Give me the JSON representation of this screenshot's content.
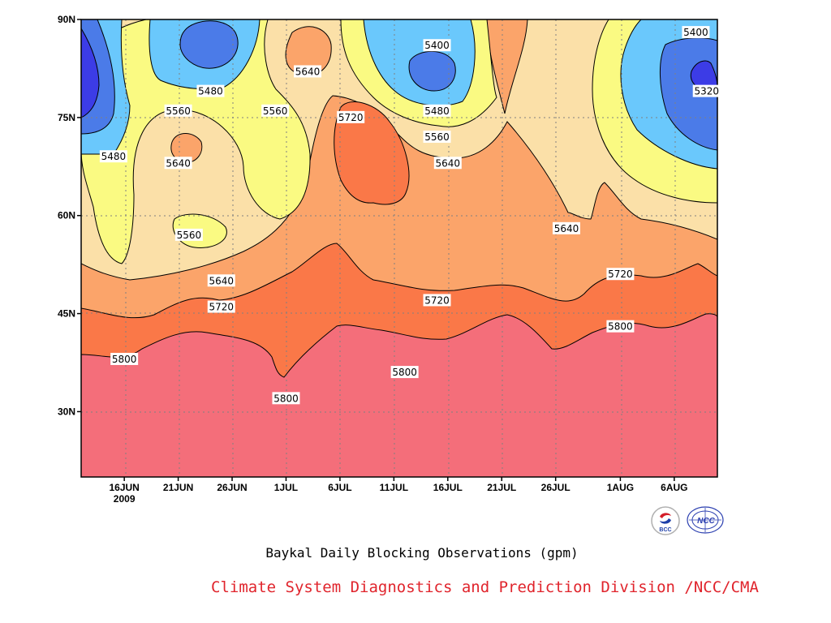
{
  "chart_data": {
    "type": "heatmap",
    "subtype": "filled-contour (time vs latitude)",
    "title": "Baykal Daily Blocking Observations (gpm)",
    "x_axis": {
      "ticks": [
        "16JUN",
        "21JUN",
        "26JUN",
        "1JUL",
        "6JUL",
        "11JUL",
        "16JUL",
        "21JUL",
        "26JUL",
        "1AUG",
        "6AUG"
      ],
      "year_label": "2009",
      "range": [
        "2009-06-12",
        "2009-08-10"
      ]
    },
    "y_axis": {
      "ticks": [
        "30N",
        "45N",
        "60N",
        "75N",
        "90N"
      ],
      "tick_values": [
        30,
        45,
        60,
        75,
        90
      ],
      "range": [
        20,
        90
      ],
      "unit": "degrees North"
    },
    "grid": true,
    "contour_levels": [
      5320,
      5400,
      5480,
      5560,
      5640,
      5720,
      5800
    ],
    "fill_colors": {
      "lt5320": "#3c3ce6",
      "5320_5400": "#4b7be8",
      "5400_5480": "#6ac8fc",
      "5480_5560": "#fafa82",
      "5560_5640": "#fbe0a8",
      "5640_5720": "#fba46a",
      "5720_5800": "#fa7848",
      "gt5800": "#f46e7a"
    },
    "contour_labels": [
      {
        "text": "5800",
        "date": "2009-06-16",
        "lat": 38
      },
      {
        "text": "5800",
        "date": "2009-07-01",
        "lat": 32
      },
      {
        "text": "5800",
        "date": "2009-07-12",
        "lat": 36
      },
      {
        "text": "5800",
        "date": "2009-08-01",
        "lat": 43
      },
      {
        "text": "5720",
        "date": "2009-06-25",
        "lat": 46
      },
      {
        "text": "5720",
        "date": "2009-07-15",
        "lat": 47
      },
      {
        "text": "5720",
        "date": "2009-08-01",
        "lat": 51
      },
      {
        "text": "5720",
        "date": "2009-07-07",
        "lat": 75
      },
      {
        "text": "5640",
        "date": "2009-06-25",
        "lat": 50
      },
      {
        "text": "5640",
        "date": "2009-06-21",
        "lat": 68
      },
      {
        "text": "5640",
        "date": "2009-07-03",
        "lat": 82
      },
      {
        "text": "5640",
        "date": "2009-07-16",
        "lat": 68
      },
      {
        "text": "5640",
        "date": "2009-07-27",
        "lat": 58
      },
      {
        "text": "5560",
        "date": "2009-06-22",
        "lat": 57
      },
      {
        "text": "5560",
        "date": "2009-06-21",
        "lat": 76
      },
      {
        "text": "5560",
        "date": "2009-06-30",
        "lat": 76
      },
      {
        "text": "5560",
        "date": "2009-07-15",
        "lat": 72
      },
      {
        "text": "5480",
        "date": "2009-06-15",
        "lat": 69
      },
      {
        "text": "5480",
        "date": "2009-06-24",
        "lat": 79
      },
      {
        "text": "5480",
        "date": "2009-07-15",
        "lat": 76
      },
      {
        "text": "5400",
        "date": "2009-07-15",
        "lat": 86
      },
      {
        "text": "5400",
        "date": "2009-08-08",
        "lat": 88
      },
      {
        "text": "5320",
        "date": "2009-08-09",
        "lat": 79
      }
    ]
  },
  "footer": {
    "credit": "Climate System Diagnostics and Prediction Division /NCC/CMA"
  },
  "logos": [
    {
      "name": "bcc-logo",
      "text": "BCC"
    },
    {
      "name": "ncc-logo",
      "text": "NCC"
    }
  ]
}
